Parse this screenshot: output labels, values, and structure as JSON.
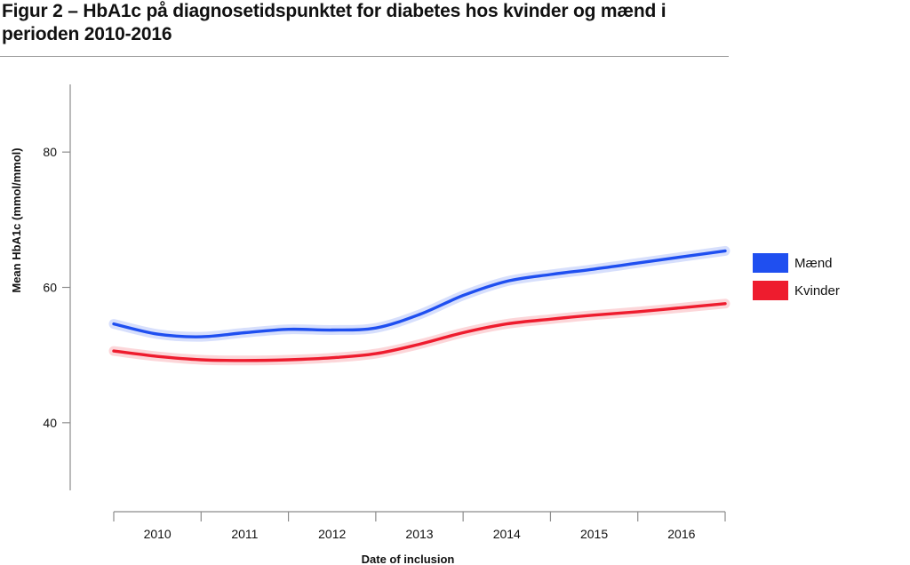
{
  "figure": {
    "title": "Figur 2 – HbA1c på diagnosetidspunktet for diabetes hos kvinder og mænd i perioden 2010-2016"
  },
  "chart_data": {
    "type": "line",
    "title": "Figur 2 – HbA1c på diagnosetidspunktet for diabetes hos kvinder og mænd i perioden 2010-2016",
    "xlabel": "Date of inclusion",
    "ylabel": "Mean HbA1c (mmol/mmol)",
    "x_categories": [
      "2010",
      "2011",
      "2012",
      "2013",
      "2014",
      "2015",
      "2016"
    ],
    "xlim": [
      2010.0,
      2017.0
    ],
    "ylim": [
      30,
      90
    ],
    "yticks": [
      40,
      60,
      80
    ],
    "grid": false,
    "legend_position": "right",
    "series": [
      {
        "name": "Mænd",
        "color": "#1f4ff0",
        "x": [
          2010.0,
          2010.5,
          2011.0,
          2011.5,
          2012.0,
          2012.5,
          2013.0,
          2013.5,
          2014.0,
          2014.5,
          2015.0,
          2015.5,
          2016.0,
          2016.5,
          2017.0
        ],
        "y": [
          54.6,
          53.1,
          52.7,
          53.3,
          53.8,
          53.7,
          54.0,
          56.0,
          58.8,
          60.9,
          61.9,
          62.7,
          63.6,
          64.5,
          65.4
        ]
      },
      {
        "name": "Kvinder",
        "color": "#ee1c2e",
        "x": [
          2010.0,
          2010.5,
          2011.0,
          2011.5,
          2012.0,
          2012.5,
          2013.0,
          2013.5,
          2014.0,
          2014.5,
          2015.0,
          2015.5,
          2016.0,
          2016.5,
          2017.0
        ],
        "y": [
          50.6,
          49.8,
          49.3,
          49.2,
          49.3,
          49.6,
          50.2,
          51.6,
          53.3,
          54.6,
          55.3,
          55.9,
          56.4,
          57.0,
          57.6
        ]
      }
    ]
  }
}
